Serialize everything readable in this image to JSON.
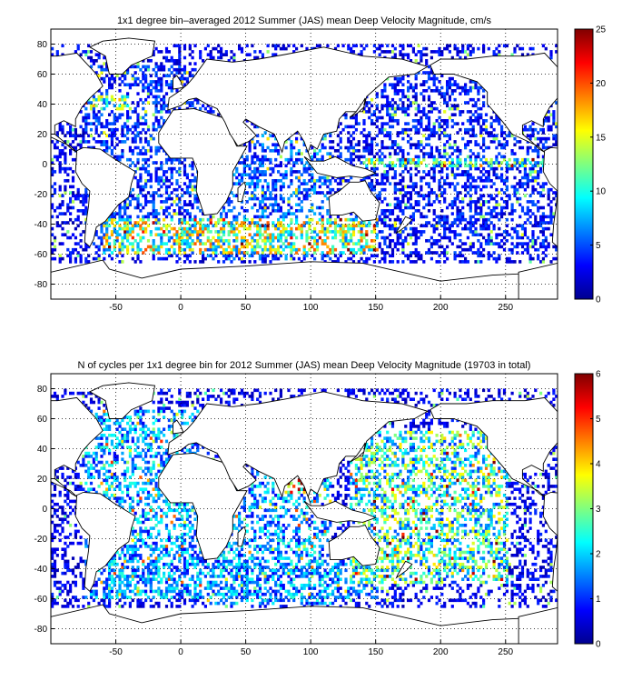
{
  "chart_data": [
    {
      "type": "heatmap",
      "title": "1x1 degree bin–averaged 2012 Summer (JAS) mean Deep Velocity Magnitude, cm/s",
      "xlabel": "",
      "ylabel": "",
      "xlim": [
        -100,
        290
      ],
      "ylim": [
        -90,
        90
      ],
      "x_ticks": [
        "-50",
        "0",
        "50",
        "100",
        "150",
        "200",
        "250"
      ],
      "y_ticks": [
        "80",
        "60",
        "40",
        "20",
        "0",
        "-20",
        "-40",
        "-60",
        "-80"
      ],
      "grid": true,
      "colorbar": {
        "min": 0,
        "max": 25,
        "ticks": [
          "25",
          "20",
          "15",
          "10",
          "5",
          "0"
        ],
        "colormap": "jet"
      },
      "description_regions": [
        {
          "lon": [
            -75,
            15
          ],
          "lat": [
            -60,
            65
          ],
          "level": 0.18
        },
        {
          "lon": [
            20,
            115
          ],
          "lat": [
            -65,
            25
          ],
          "level": 0.22
        },
        {
          "lon": [
            -60,
            150
          ],
          "lat": [
            -60,
            -38
          ],
          "level": 0.55
        },
        {
          "lon": [
            120,
            290
          ],
          "lat": [
            -60,
            60
          ],
          "level": 0.15
        },
        {
          "lon": [
            140,
            290
          ],
          "lat": [
            -3,
            3
          ],
          "level": 0.45
        },
        {
          "lon": [
            -75,
            -40
          ],
          "lat": [
            35,
            45
          ],
          "level": 0.5
        }
      ]
    },
    {
      "type": "heatmap",
      "title": "N of cycles per 1x1 degree bin for 2012 Summer (JAS) mean Deep Velocity Magnitude (19703 in total)",
      "xlabel": "",
      "ylabel": "",
      "xlim": [
        -100,
        290
      ],
      "ylim": [
        -90,
        90
      ],
      "x_ticks": [
        "-50",
        "0",
        "50",
        "100",
        "150",
        "200",
        "250"
      ],
      "y_ticks": [
        "80",
        "60",
        "40",
        "20",
        "0",
        "-20",
        "-40",
        "-60",
        "-80"
      ],
      "grid": true,
      "colorbar": {
        "min": 0,
        "max": 6,
        "ticks": [
          "6",
          "5",
          "4",
          "3",
          "2",
          "1",
          "0"
        ],
        "colormap": "jet"
      },
      "description_regions": [
        {
          "lon": [
            -75,
            15
          ],
          "lat": [
            -60,
            65
          ],
          "level": 0.3
        },
        {
          "lon": [
            20,
            115
          ],
          "lat": [
            -65,
            25
          ],
          "level": 0.3
        },
        {
          "lon": [
            130,
            250
          ],
          "lat": [
            -50,
            50
          ],
          "level": 0.45
        },
        {
          "lon": [
            -60,
            150
          ],
          "lat": [
            -60,
            -38
          ],
          "level": 0.25
        },
        {
          "lon": [
            80,
            95
          ],
          "lat": [
            10,
            22
          ],
          "level": 0.9
        }
      ]
    }
  ]
}
